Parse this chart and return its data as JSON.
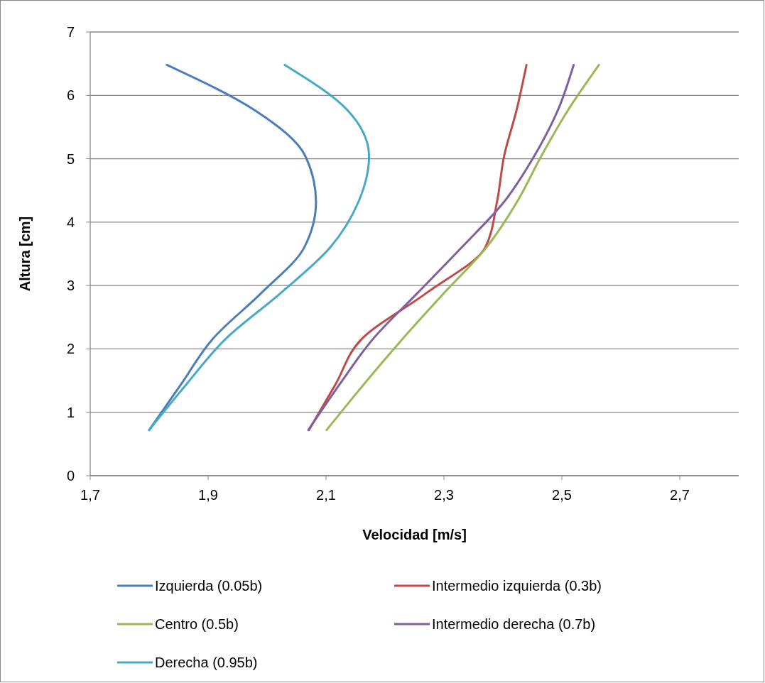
{
  "chart_data": {
    "type": "line",
    "xlabel": "Velocidad [m/s]",
    "ylabel": "Altura [cm]",
    "xlim": [
      1.7,
      2.8
    ],
    "xticks": [
      {
        "value": 1.7,
        "label": "1,7"
      },
      {
        "value": 1.9,
        "label": "1,9"
      },
      {
        "value": 2.1,
        "label": "2,1"
      },
      {
        "value": 2.3,
        "label": "2,3"
      },
      {
        "value": 2.5,
        "label": "2,5"
      },
      {
        "value": 2.7,
        "label": "2,7"
      }
    ],
    "ylim": [
      0,
      7
    ],
    "yticks": [
      0,
      1,
      2,
      3,
      4,
      5,
      6,
      7
    ],
    "grid": "y",
    "legend": "bottom",
    "marker": "none",
    "line_style": "solid",
    "series": [
      {
        "name": "Izquierda (0.05b)",
        "color": "#4a7ebb",
        "x": [
          1.8,
          1.854,
          1.908,
          1.99,
          2.063,
          2.083,
          2.065,
          1.98,
          1.83
        ],
        "values": [
          0.72,
          1.44,
          2.16,
          2.88,
          3.6,
          4.32,
          5.04,
          5.76,
          6.48
        ]
      },
      {
        "name": "Intermedio izquierda (0.3b)",
        "color": "#be4b48",
        "x": [
          2.071,
          2.116,
          2.161,
          2.27,
          2.37,
          2.39,
          2.402,
          2.423,
          2.44
        ],
        "values": [
          0.72,
          1.44,
          2.16,
          2.88,
          3.6,
          4.32,
          5.04,
          5.76,
          6.48
        ]
      },
      {
        "name": "Centro (0.5b)",
        "color": "#98b954",
        "x": [
          2.101,
          2.164,
          2.23,
          2.3,
          2.372,
          2.424,
          2.465,
          2.51,
          2.563
        ],
        "values": [
          0.72,
          1.44,
          2.16,
          2.88,
          3.6,
          4.32,
          5.04,
          5.76,
          6.48
        ]
      },
      {
        "name": "Intermedio derecha (0.7b)",
        "color": "#7d60a0",
        "x": [
          2.07,
          2.123,
          2.18,
          2.255,
          2.33,
          2.402,
          2.453,
          2.493,
          2.52
        ],
        "values": [
          0.72,
          1.44,
          2.16,
          2.88,
          3.6,
          4.32,
          5.04,
          5.76,
          6.48
        ]
      },
      {
        "name": "Derecha (0.95b)",
        "color": "#46aac5",
        "x": [
          1.8,
          1.863,
          1.93,
          2.023,
          2.107,
          2.155,
          2.173,
          2.137,
          2.03
        ],
        "values": [
          0.72,
          1.44,
          2.16,
          2.88,
          3.6,
          4.32,
          5.04,
          5.76,
          6.48
        ]
      }
    ]
  }
}
